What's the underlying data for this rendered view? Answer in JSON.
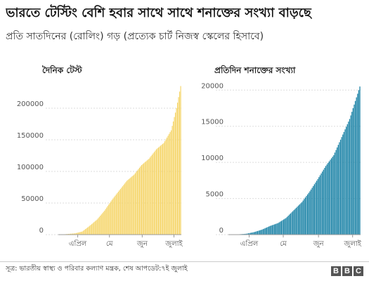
{
  "title": "ভারতে টেস্টিং বেশি হবার সাথে সাথে শনাক্তের সংখ্যা বাড়ছে",
  "subtitle": "প্রতি সাতদিনের (রোলিং) গড় (প্রত্যেক চার্ট নিজস্ব স্কেলের হিসাবে)",
  "source": "সূত্র: ভারতীয় স্বাস্থ্য ও পরিবার কল্যাণ মন্ত্রক, শেষ আপডেট:৭ই জুলাই",
  "logo": [
    "B",
    "B",
    "C"
  ],
  "chart_data": [
    {
      "type": "bar",
      "title": "দৈনিক টেস্ট",
      "color": "#f5d466",
      "ylim": [
        0,
        240000
      ],
      "yticks": [
        0,
        50000,
        100000,
        150000,
        200000
      ],
      "ytick_labels": [
        "0",
        "50000",
        "100000",
        "150000",
        "200000"
      ],
      "x_start": "2020-03-15",
      "x_end": "2020-07-07",
      "xticks": [
        "এপ্রিল",
        "মে",
        "জুন",
        "জুলাই"
      ],
      "xtick_dates": [
        "2020-04-01",
        "2020-05-01",
        "2020-06-01",
        "2020-07-01"
      ],
      "anchors": [
        [
          "2020-03-15",
          0
        ],
        [
          "2020-03-22",
          1000
        ],
        [
          "2020-03-29",
          2000
        ],
        [
          "2020-04-05",
          5000
        ],
        [
          "2020-04-12",
          14000
        ],
        [
          "2020-04-19",
          24000
        ],
        [
          "2020-04-26",
          38000
        ],
        [
          "2020-05-03",
          55000
        ],
        [
          "2020-05-10",
          70000
        ],
        [
          "2020-05-17",
          85000
        ],
        [
          "2020-05-24",
          95000
        ],
        [
          "2020-05-31",
          110000
        ],
        [
          "2020-06-07",
          120000
        ],
        [
          "2020-06-14",
          135000
        ],
        [
          "2020-06-21",
          145000
        ],
        [
          "2020-06-28",
          165000
        ],
        [
          "2020-07-03",
          200000
        ],
        [
          "2020-07-07",
          235000
        ]
      ]
    },
    {
      "type": "bar",
      "title": "প্রতিদিন শনাক্তের সংখ্যা",
      "color": "#1a82a6",
      "ylim": [
        0,
        21000
      ],
      "yticks": [
        0,
        5000,
        10000,
        15000,
        20000
      ],
      "ytick_labels": [
        "0",
        "5000",
        "10000",
        "15000",
        "20000"
      ],
      "x_start": "2020-03-15",
      "x_end": "2020-07-07",
      "xticks": [
        "এপ্রিল",
        "মে",
        "জুন",
        "জুলাই"
      ],
      "xtick_dates": [
        "2020-04-01",
        "2020-05-01",
        "2020-06-01",
        "2020-07-01"
      ],
      "anchors": [
        [
          "2020-03-15",
          10
        ],
        [
          "2020-03-22",
          40
        ],
        [
          "2020-03-29",
          120
        ],
        [
          "2020-04-05",
          350
        ],
        [
          "2020-04-12",
          700
        ],
        [
          "2020-04-19",
          1200
        ],
        [
          "2020-04-26",
          1600
        ],
        [
          "2020-05-03",
          2300
        ],
        [
          "2020-05-10",
          3400
        ],
        [
          "2020-05-17",
          4500
        ],
        [
          "2020-05-24",
          6000
        ],
        [
          "2020-05-31",
          7700
        ],
        [
          "2020-06-07",
          9500
        ],
        [
          "2020-06-14",
          11000
        ],
        [
          "2020-06-21",
          13500
        ],
        [
          "2020-06-28",
          16000
        ],
        [
          "2020-07-03",
          18500
        ],
        [
          "2020-07-07",
          20500
        ]
      ]
    }
  ]
}
